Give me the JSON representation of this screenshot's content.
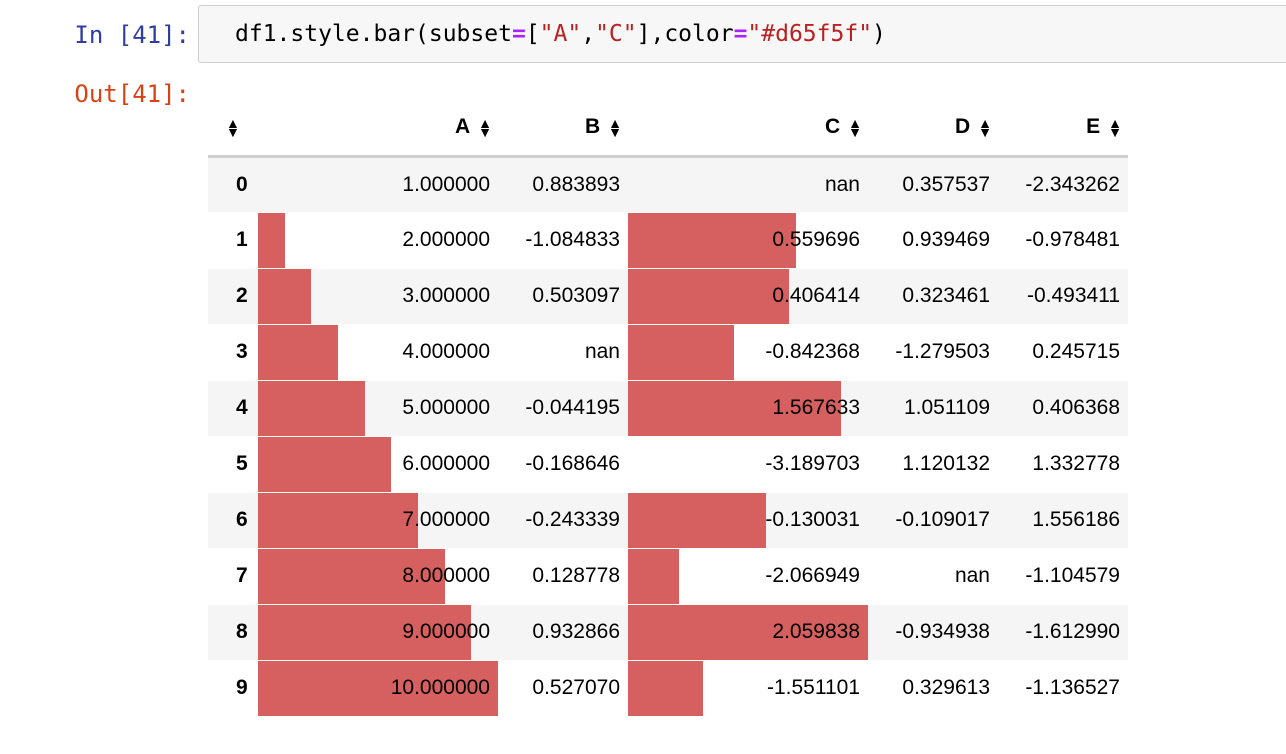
{
  "cell": {
    "in_prompt": "In [41]:",
    "out_prompt": "Out[41]:",
    "code": {
      "t1": "df1.style.bar(subset",
      "t2": "=",
      "t3": "[",
      "t4": "\"A\"",
      "t5": ",",
      "t6": "\"C\"",
      "t7": "],color",
      "t8": "=",
      "t9": "\"#d65f5f\"",
      "t10": ")"
    }
  },
  "table": {
    "columns": [
      "A",
      "B",
      "C",
      "D",
      "E"
    ],
    "sort_icon": "sort-both-icon",
    "bar_color": "#d65f5f",
    "rows": [
      {
        "index": "0",
        "cells": [
          "1.000000",
          "0.883893",
          "nan",
          "0.357537",
          "-2.343262"
        ],
        "bar_A": 0.0,
        "bar_C": 0.0
      },
      {
        "index": "1",
        "cells": [
          "2.000000",
          "-1.084833",
          "0.559696",
          "0.939469",
          "-0.978481"
        ],
        "bar_A": 0.111,
        "bar_C": 0.7
      },
      {
        "index": "2",
        "cells": [
          "3.000000",
          "0.503097",
          "0.406414",
          "0.323461",
          "-0.493411"
        ],
        "bar_A": 0.222,
        "bar_C": 0.672
      },
      {
        "index": "3",
        "cells": [
          "4.000000",
          "nan",
          "-0.842368",
          "-1.279503",
          "0.245715"
        ],
        "bar_A": 0.333,
        "bar_C": 0.44
      },
      {
        "index": "4",
        "cells": [
          "5.000000",
          "-0.044195",
          "1.567633",
          "1.051109",
          "0.406368"
        ],
        "bar_A": 0.444,
        "bar_C": 0.887
      },
      {
        "index": "5",
        "cells": [
          "6.000000",
          "-0.168646",
          "-3.189703",
          "1.120132",
          "1.332778"
        ],
        "bar_A": 0.556,
        "bar_C": 0.0
      },
      {
        "index": "6",
        "cells": [
          "7.000000",
          "-0.243339",
          "-0.130031",
          "-0.109017",
          "1.556186"
        ],
        "bar_A": 0.667,
        "bar_C": 0.573
      },
      {
        "index": "7",
        "cells": [
          "8.000000",
          "0.128778",
          "-2.066949",
          "nan",
          "-1.104579"
        ],
        "bar_A": 0.778,
        "bar_C": 0.213
      },
      {
        "index": "8",
        "cells": [
          "9.000000",
          "0.932866",
          "2.059838",
          "-0.934938",
          "-1.612990"
        ],
        "bar_A": 0.889,
        "bar_C": 1.0
      },
      {
        "index": "9",
        "cells": [
          "10.000000",
          "0.527070",
          "-1.551101",
          "0.329613",
          "-1.136527"
        ],
        "bar_A": 1.0,
        "bar_C": 0.311
      }
    ]
  }
}
